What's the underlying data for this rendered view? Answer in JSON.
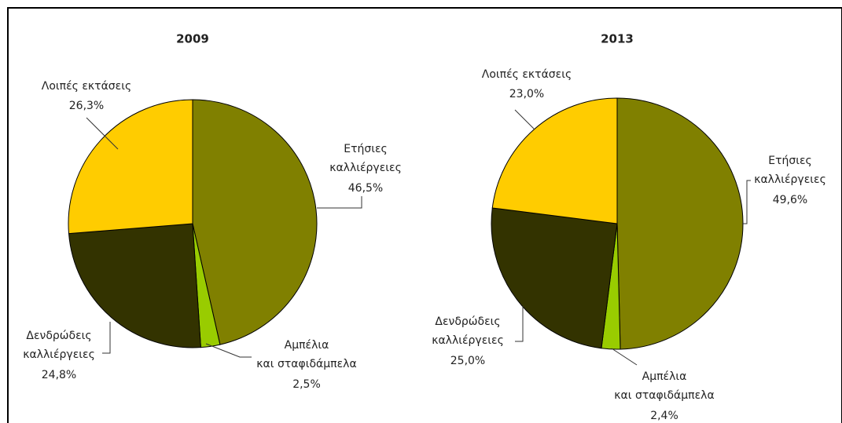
{
  "chart_data": [
    {
      "type": "pie",
      "title": "2009",
      "categories": [
        "Ετήσιες καλλιέργειες",
        "Αμπέλια και σταφιδάμπελα",
        "Δενδρώδεις καλλιέργειες",
        "Λοιπές εκτάσεις"
      ],
      "values": [
        46.5,
        2.5,
        24.8,
        26.3
      ],
      "value_labels": [
        "46,5%",
        "2,5%",
        "24,8%",
        "26,3%"
      ],
      "colors": [
        "#808000",
        "#99cc00",
        "#333300",
        "#ffcc00"
      ]
    },
    {
      "type": "pie",
      "title": "2013",
      "categories": [
        "Ετήσιες καλλιέργειες",
        "Αμπέλια και σταφιδάμπελα",
        "Δενδρώδεις καλλιέργειες",
        "Λοιπές εκτάσεις"
      ],
      "values": [
        49.6,
        2.4,
        25.0,
        23.0
      ],
      "value_labels": [
        "49,6%",
        "2,4%",
        "25,0%",
        "23,0%"
      ],
      "colors": [
        "#808000",
        "#99cc00",
        "#333300",
        "#ffcc00"
      ]
    }
  ]
}
